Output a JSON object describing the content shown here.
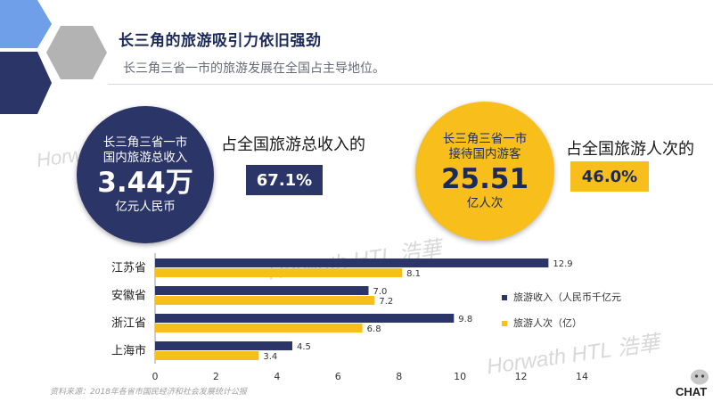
{
  "header": {
    "title": "长三角的旅游吸引力依旧强劲",
    "subtitle": "长三角三省一市的旅游发展在全国占主导地位。"
  },
  "left_stat": {
    "line1": "长三角三省一市",
    "line2": "国内旅游总收入",
    "value": "3.44万",
    "unit": "亿元人民币",
    "caption": "占全国旅游总收入的",
    "share": "67.1%",
    "color": "#2b3568"
  },
  "right_stat": {
    "line1": "长三角三省一市",
    "line2": "接待国内游客",
    "value": "25.51",
    "unit": "亿人次",
    "caption": "占全国旅游人次的",
    "share": "46.0%",
    "color": "#f8bf1c"
  },
  "watermarks": {
    "brand": "Horwath HTL 浩華"
  },
  "chart_data": {
    "type": "bar",
    "orientation": "horizontal",
    "categories": [
      "江苏省",
      "安徽省",
      "浙江省",
      "上海市"
    ],
    "series": [
      {
        "name": "旅游收入（人民币千亿元",
        "values": [
          12.9,
          7.0,
          9.8,
          4.5
        ],
        "color": "#2b3568"
      },
      {
        "name": "旅游人次（亿）",
        "values": [
          8.1,
          7.2,
          6.8,
          3.4
        ],
        "color": "#f8bf1c"
      }
    ],
    "data_labels": [
      [
        "12.9",
        "7.0",
        "9.8",
        "4.5"
      ],
      [
        "8.1",
        "7.2",
        "6.8",
        "3.4"
      ]
    ],
    "xlim": [
      0,
      14
    ],
    "xticks": [
      "0",
      "2",
      "4",
      "6",
      "8",
      "10",
      "12",
      "14"
    ],
    "grid": false,
    "legend_position": "right"
  },
  "footer": {
    "source": "资料来源：2018年各省市国民经济和社会发展统计公报",
    "logo": "CHAT"
  }
}
